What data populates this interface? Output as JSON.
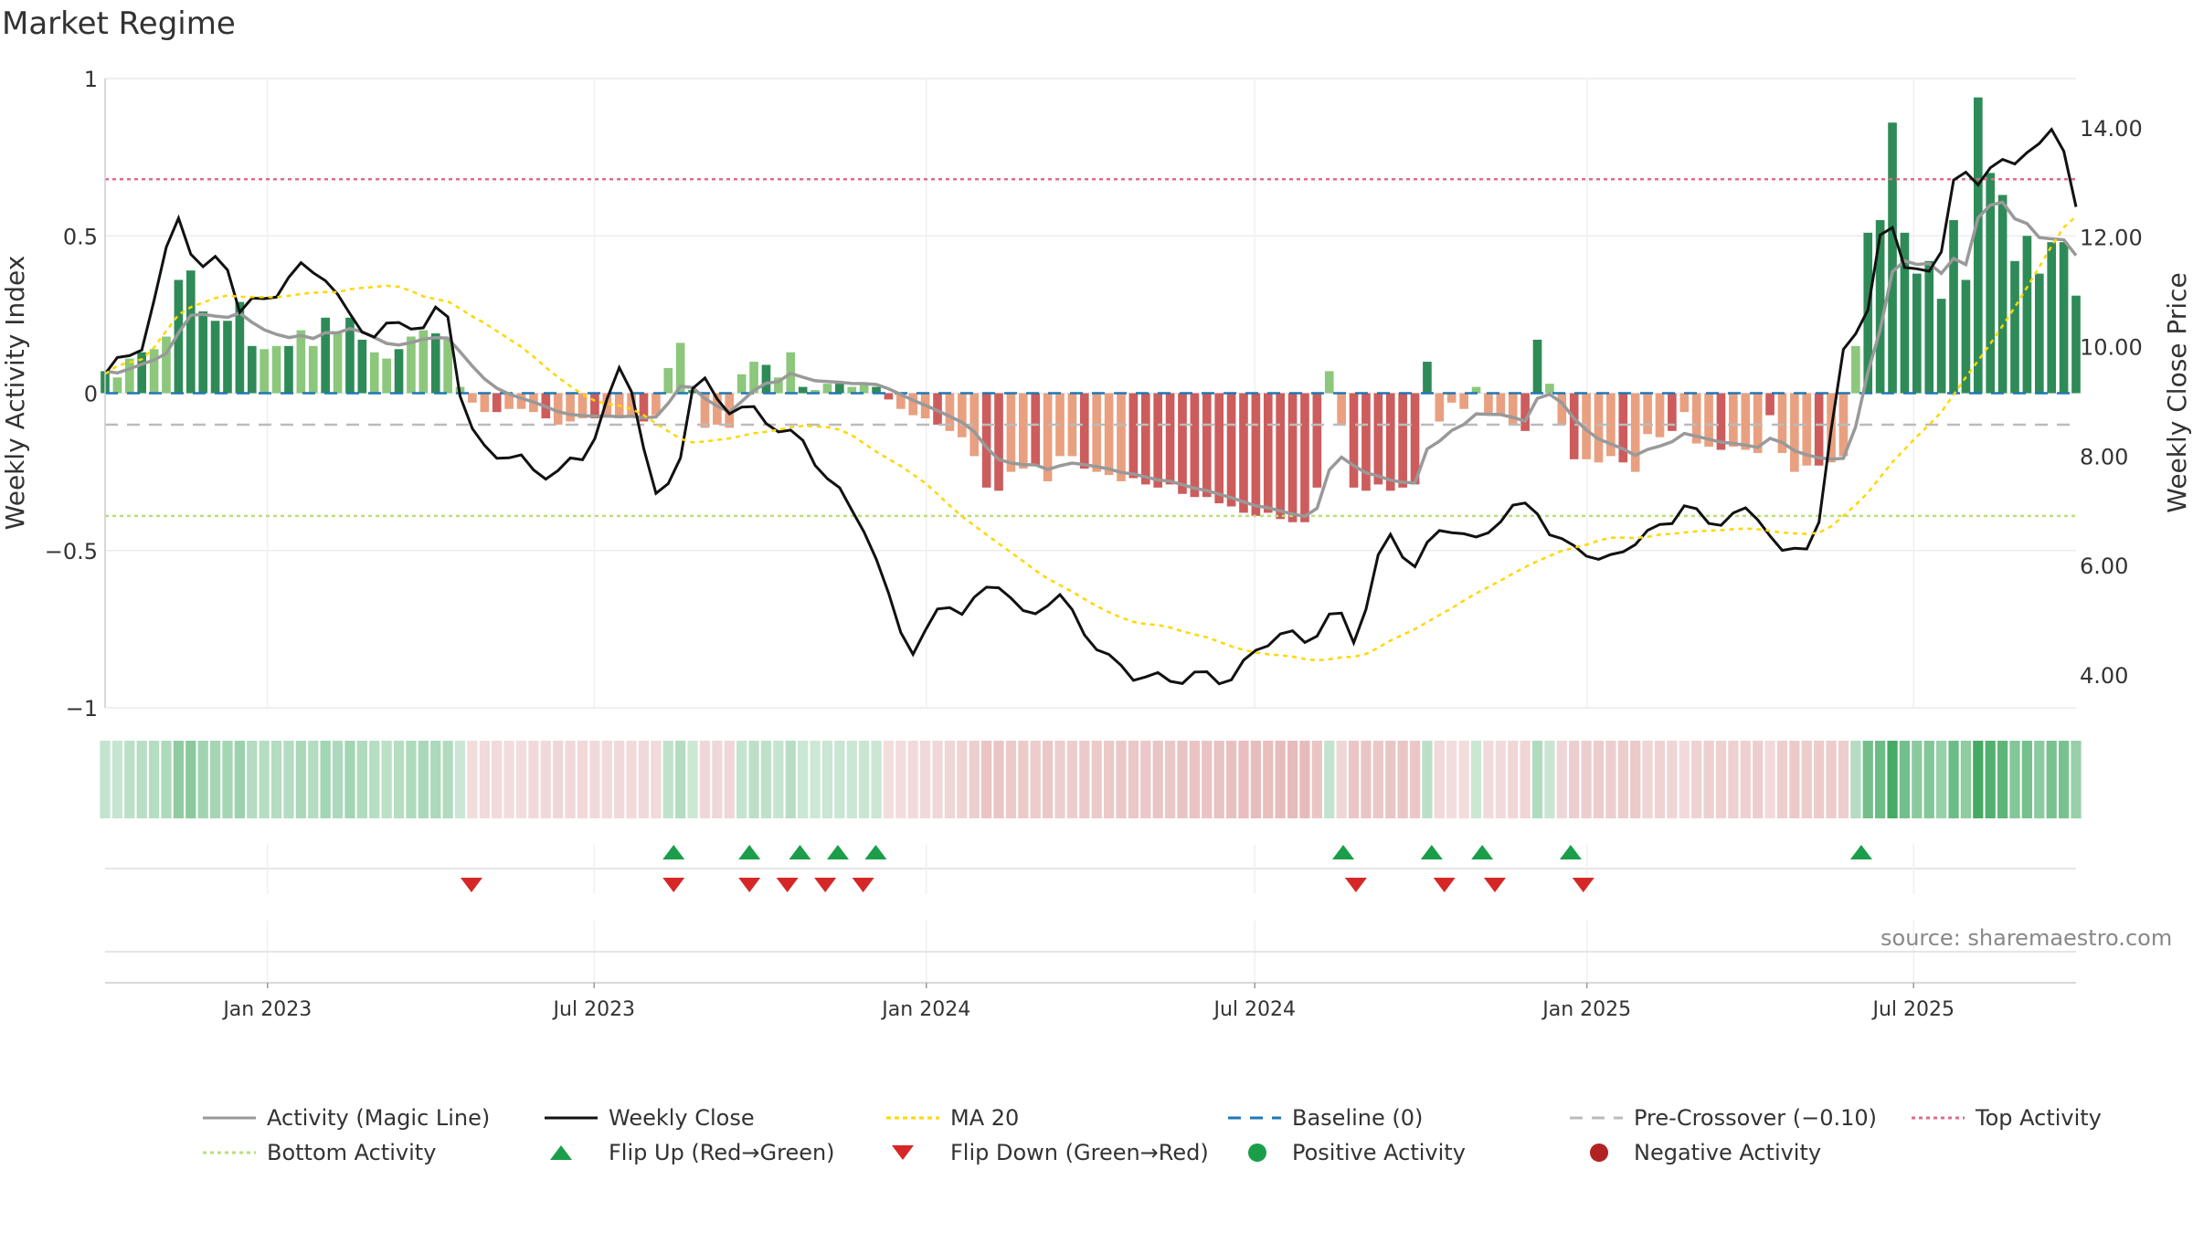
{
  "title": "Market Regime",
  "source": "source: sharemaestro.com",
  "colors": {
    "up_strong": "#2e8b57",
    "up_weak": "#8cc77c",
    "down_strong": "#cd5c5c",
    "down_weak": "#e9a080",
    "magic": "#999999",
    "close": "#111111",
    "ma": "#ffd700",
    "baseline": "#1f77b4",
    "pre": "#bbbbbb",
    "top": "#e06c88",
    "bottom": "#b8e07a",
    "flip_up": "#1a9e4a",
    "flip_down": "#d62728",
    "pos": "#1a9e4a",
    "neg": "#b22222"
  },
  "chart_data": {
    "type": "bar",
    "ylabel_left": "Weekly Activity Index",
    "ylabel_right": "Weekly Close Price",
    "ylim_left": [
      -1,
      1
    ],
    "yticks_left": [
      "1",
      "0.5",
      "0",
      "−0.5",
      "−1"
    ],
    "ylim_right": [
      3.4,
      14.9
    ],
    "yticks_right": [
      "14.00",
      "12.00",
      "10.00",
      "8.00",
      "6.00",
      "4.00"
    ],
    "x_start": "2022-10-03",
    "x_end": "2025-09-29",
    "x_ticks": [
      "Jan 2023",
      "Jul 2023",
      "Jan 2024",
      "Jul 2024",
      "Jan 2025",
      "Jul 2025"
    ],
    "x_tick_dates": [
      "2023-01-01",
      "2023-07-01",
      "2024-01-01",
      "2024-07-01",
      "2025-01-01",
      "2025-07-01"
    ],
    "top_activity": 0.68,
    "bottom_activity": -0.39,
    "pre_crossover": -0.1,
    "baseline": 0,
    "weekly_activity": [
      0.07,
      0.05,
      0.11,
      0.13,
      0.14,
      0.18,
      0.36,
      0.39,
      0.26,
      0.23,
      0.23,
      0.29,
      0.15,
      0.14,
      0.15,
      0.15,
      0.2,
      0.15,
      0.24,
      0.19,
      0.24,
      0.17,
      0.13,
      0.11,
      0.14,
      0.18,
      0.2,
      0.19,
      0.17,
      0.02,
      -0.03,
      -0.06,
      -0.06,
      -0.05,
      -0.05,
      -0.06,
      -0.08,
      -0.1,
      -0.09,
      -0.08,
      -0.08,
      -0.07,
      -0.08,
      -0.07,
      -0.09,
      -0.07,
      0.08,
      0.16,
      0.01,
      -0.11,
      -0.1,
      -0.11,
      0.06,
      0.1,
      0.09,
      0.05,
      0.13,
      0.02,
      0.01,
      0.03,
      0.03,
      0.02,
      0.03,
      0.02,
      -0.02,
      -0.05,
      -0.07,
      -0.08,
      -0.1,
      -0.12,
      -0.14,
      -0.2,
      -0.3,
      -0.31,
      -0.25,
      -0.24,
      -0.23,
      -0.28,
      -0.2,
      -0.2,
      -0.24,
      -0.25,
      -0.26,
      -0.28,
      -0.27,
      -0.29,
      -0.3,
      -0.29,
      -0.32,
      -0.33,
      -0.33,
      -0.35,
      -0.36,
      -0.38,
      -0.39,
      -0.38,
      -0.4,
      -0.41,
      -0.41,
      -0.3,
      0.07,
      -0.1,
      -0.3,
      -0.31,
      -0.29,
      -0.31,
      -0.3,
      -0.29,
      0.1,
      -0.09,
      -0.03,
      -0.05,
      0.02,
      -0.07,
      -0.07,
      -0.1,
      -0.12,
      0.17,
      0.03,
      -0.1,
      -0.21,
      -0.21,
      -0.22,
      -0.2,
      -0.22,
      -0.25,
      -0.13,
      -0.14,
      -0.12,
      -0.06,
      -0.16,
      -0.17,
      -0.18,
      -0.17,
      -0.18,
      -0.19,
      -0.07,
      -0.19,
      -0.25,
      -0.23,
      -0.23,
      -0.22,
      -0.2,
      0.15,
      0.51,
      0.55,
      0.86,
      0.51,
      0.38,
      0.42,
      0.3,
      0.55,
      0.36,
      0.94,
      0.7,
      0.63,
      0.42,
      0.5,
      0.38,
      0.48,
      0.48,
      0.31
    ],
    "flip_up_dates": [
      "2023-08-14",
      "2023-09-25",
      "2023-10-23",
      "2023-11-13",
      "2023-12-04",
      "2024-08-19",
      "2024-10-07",
      "2024-11-04",
      "2024-12-23",
      "2025-06-02"
    ],
    "flip_down_dates": [
      "2023-04-24",
      "2023-08-14",
      "2023-09-25",
      "2023-10-16",
      "2023-11-06",
      "2023-11-27",
      "2024-08-26",
      "2024-10-14",
      "2024-11-11",
      "2024-12-30"
    ]
  },
  "legend": {
    "magic": "Activity (Magic Line)",
    "close": "Weekly Close",
    "ma": "MA 20",
    "baseline": "Baseline (0)",
    "pre": "Pre-Crossover (−0.10)",
    "top": "Top Activity",
    "bottom": "Bottom Activity",
    "flip_up": "Flip Up (Red→Green)",
    "flip_down": "Flip Down (Green→Red)",
    "pos": "Positive Activity",
    "neg": "Negative Activity"
  }
}
